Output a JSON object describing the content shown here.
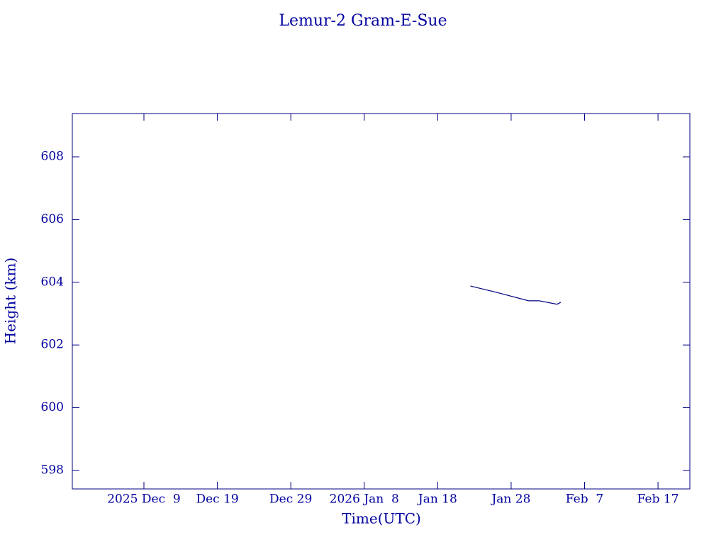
{
  "chart_data": {
    "type": "line",
    "title": "Lemur-2 Gram-E-Sue",
    "x_label": "Time(UTC)",
    "y_label": "Height (km)",
    "x": [
      "2026-01-22T11:00",
      "2026-01-26T00:00",
      "2026-01-30T09:00",
      "2026-01-31T00:00",
      "2026-01-31T20:00",
      "2026-02-03T06:00",
      "2026-02-03T18:00"
    ],
    "series": [
      {
        "name": "Height",
        "color": "#000080",
        "values": [
          603.88,
          603.68,
          603.41,
          603.41,
          603.41,
          603.3,
          603.36
        ]
      }
    ],
    "xlim": [
      "2025-11-29T06:00",
      "2026-02-21T08:00"
    ],
    "xticks": [
      {
        "value": "2025-12-09",
        "label": "2025 Dec  9"
      },
      {
        "value": "2025-12-19",
        "label": "Dec 19"
      },
      {
        "value": "2025-12-29",
        "label": "Dec 29"
      },
      {
        "value": "2026-01-08",
        "label": "2026 Jan  8"
      },
      {
        "value": "2026-01-18",
        "label": "Jan 18"
      },
      {
        "value": "2026-01-28",
        "label": "Jan 28"
      },
      {
        "value": "2026-02-07",
        "label": "Feb  7"
      },
      {
        "value": "2026-02-17",
        "label": "Feb 17"
      }
    ],
    "ylim": [
      597.41,
      609.38
    ],
    "yticks": [
      598,
      600,
      602,
      604,
      606,
      608
    ],
    "grid": false
  }
}
